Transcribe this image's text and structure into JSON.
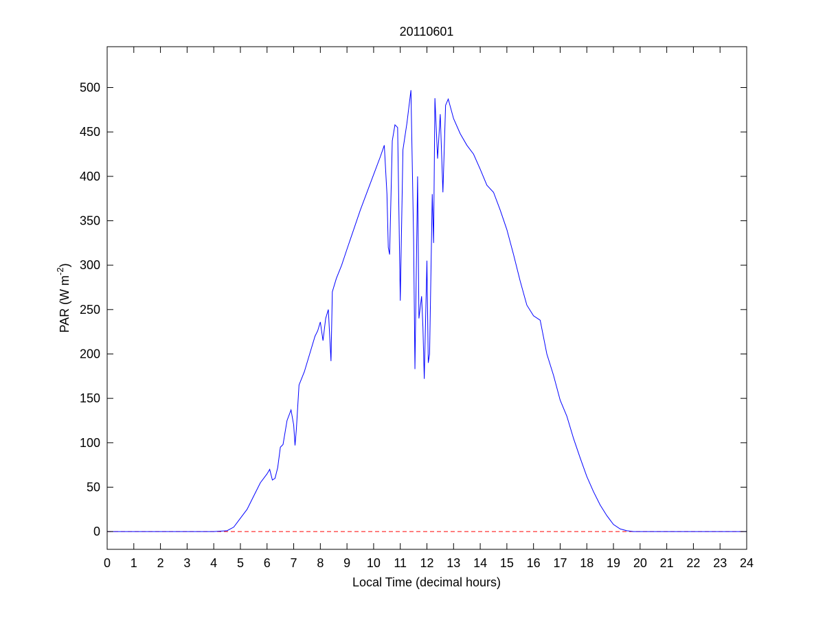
{
  "chart_data": {
    "type": "line",
    "title": "20110601",
    "x_label": "Local Time (decimal hours)",
    "y_label": {
      "text": "PAR (W m",
      "superscript": "-2",
      "suffix": ")"
    },
    "xlim": [
      0,
      24
    ],
    "xticks": [
      0,
      1,
      2,
      3,
      4,
      5,
      6,
      7,
      8,
      9,
      10,
      11,
      12,
      13,
      14,
      15,
      16,
      17,
      18,
      19,
      20,
      21,
      22,
      23,
      24
    ],
    "ylim": [
      -20,
      546
    ],
    "yticks": [
      0,
      50,
      100,
      150,
      200,
      250,
      300,
      350,
      400,
      450,
      500
    ],
    "grid": false,
    "reference_line": {
      "value": 0,
      "color": "#ff0000",
      "style": "dashed"
    },
    "series": [
      {
        "color": "#0000ff",
        "x": [
          0,
          4,
          4.5,
          4.75,
          5,
          5.25,
          5.5,
          5.75,
          6,
          6.1,
          6.2,
          6.3,
          6.4,
          6.5,
          6.6,
          6.75,
          6.9,
          7,
          7.05,
          7.1,
          7.2,
          7.4,
          7.6,
          7.8,
          7.9,
          8,
          8.1,
          8.2,
          8.3,
          8.4,
          8.45,
          8.6,
          8.8,
          9,
          9.25,
          9.5,
          9.75,
          10,
          10.25,
          10.4,
          10.5,
          10.55,
          10.6,
          10.7,
          10.8,
          10.9,
          11,
          11.1,
          11.25,
          11.4,
          11.5,
          11.55,
          11.65,
          11.7,
          11.8,
          11.85,
          11.9,
          12,
          12.05,
          12.1,
          12.2,
          12.25,
          12.3,
          12.4,
          12.5,
          12.6,
          12.7,
          12.8,
          13,
          13.25,
          13.5,
          13.75,
          14,
          14.25,
          14.5,
          14.75,
          15,
          15.25,
          15.5,
          15.75,
          16,
          16.25,
          16.5,
          16.75,
          17,
          17.25,
          17.5,
          17.75,
          18,
          18.25,
          18.5,
          18.75,
          19,
          19.25,
          19.5,
          19.75,
          24
        ],
        "values": [
          0,
          0,
          1,
          5,
          15,
          25,
          40,
          55,
          65,
          70,
          58,
          60,
          72,
          95,
          98,
          125,
          137,
          120,
          97,
          115,
          165,
          180,
          200,
          220,
          226,
          236,
          215,
          240,
          250,
          192,
          270,
          285,
          300,
          318,
          340,
          362,
          382,
          402,
          422,
          435,
          380,
          320,
          312,
          440,
          458,
          455,
          260,
          430,
          460,
          497,
          330,
          183,
          400,
          240,
          265,
          230,
          172,
          305,
          190,
          200,
          380,
          325,
          488,
          420,
          470,
          382,
          480,
          487,
          465,
          448,
          435,
          425,
          408,
          390,
          382,
          362,
          340,
          312,
          282,
          255,
          243,
          238,
          200,
          176,
          148,
          130,
          105,
          83,
          62,
          45,
          30,
          18,
          8,
          3,
          1,
          0,
          0
        ]
      }
    ]
  }
}
